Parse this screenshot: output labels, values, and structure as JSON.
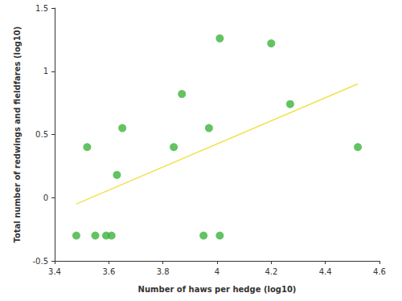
{
  "chart_data": {
    "type": "scatter",
    "x_label": "Number of haws per hedge (log10)",
    "y_label": "Total number of redwings and fieldfares (log10)",
    "xlim": [
      3.4,
      4.6
    ],
    "xticks": [
      3.4,
      3.6,
      3.8,
      4,
      4.2,
      4.4,
      4.6
    ],
    "ylim": [
      -0.5,
      1.5
    ],
    "yticks": [
      -0.5,
      0,
      0.5,
      1,
      1.5
    ],
    "grid": false,
    "series": [
      {
        "type": "scatter",
        "marker": "circle",
        "color": "#3cb43c",
        "x": [
          3.48,
          3.52,
          3.55,
          3.59,
          3.61,
          3.63,
          3.65,
          3.84,
          3.87,
          3.95,
          3.97,
          4.01,
          4.01,
          4.2,
          4.27,
          4.52
        ],
        "values": [
          -0.3,
          0.4,
          -0.3,
          -0.3,
          -0.3,
          0.18,
          0.55,
          0.4,
          0.82,
          -0.3,
          0.55,
          1.26,
          -0.3,
          1.22,
          0.74,
          0.4
        ]
      },
      {
        "type": "line",
        "line_style": "solid",
        "color": "#f2e14c",
        "x": [
          3.48,
          4.52
        ],
        "values": [
          -0.05,
          0.9
        ]
      }
    ]
  }
}
